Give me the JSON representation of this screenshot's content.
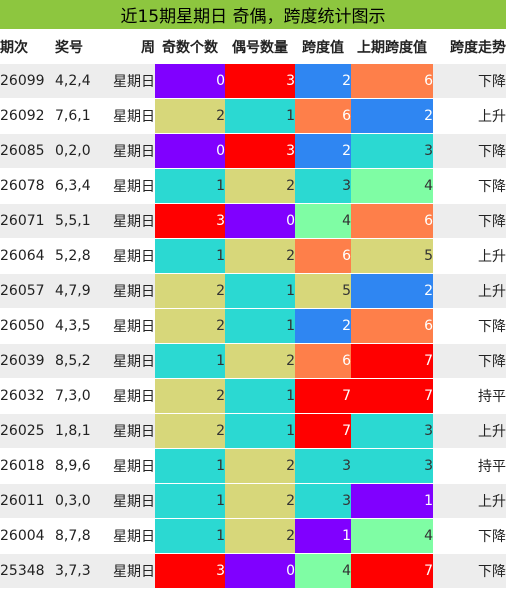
{
  "title": "近15期星期日 奇偶，跨度统计图示",
  "columns": [
    "期次",
    "奖号",
    "周",
    "奇数个数",
    "偶号数量",
    "跨度值",
    "上期跨度值",
    "跨度走势"
  ],
  "colors": {
    "0": "#8000ff",
    "1": "#2bd9d2",
    "2": "#d7d77a",
    "3": "#ff0000",
    "4": "#7ffda4",
    "5": "#d7d77a",
    "6": "#fe7f4a",
    "7": "#ff0000",
    "2_span": "#2f86f2",
    "1_span": "#8000ff",
    "3_span": "#2bd9d2"
  },
  "rows": [
    {
      "issue": "26099",
      "numbers": "4,2,4",
      "week": "星期日",
      "odd": "0",
      "even": "3",
      "span": "2",
      "prev_span": "6",
      "trend": "下降"
    },
    {
      "issue": "26092",
      "numbers": "7,6,1",
      "week": "星期日",
      "odd": "2",
      "even": "1",
      "span": "6",
      "prev_span": "2",
      "trend": "上升"
    },
    {
      "issue": "26085",
      "numbers": "0,2,0",
      "week": "星期日",
      "odd": "0",
      "even": "3",
      "span": "2",
      "prev_span": "3",
      "trend": "下降"
    },
    {
      "issue": "26078",
      "numbers": "6,3,4",
      "week": "星期日",
      "odd": "1",
      "even": "2",
      "span": "3",
      "prev_span": "4",
      "trend": "下降"
    },
    {
      "issue": "26071",
      "numbers": "5,5,1",
      "week": "星期日",
      "odd": "3",
      "even": "0",
      "span": "4",
      "prev_span": "6",
      "trend": "下降"
    },
    {
      "issue": "26064",
      "numbers": "5,2,8",
      "week": "星期日",
      "odd": "1",
      "even": "2",
      "span": "6",
      "prev_span": "5",
      "trend": "上升"
    },
    {
      "issue": "26057",
      "numbers": "4,7,9",
      "week": "星期日",
      "odd": "2",
      "even": "1",
      "span": "5",
      "prev_span": "2",
      "trend": "上升"
    },
    {
      "issue": "26050",
      "numbers": "4,3,5",
      "week": "星期日",
      "odd": "2",
      "even": "1",
      "span": "2",
      "prev_span": "6",
      "trend": "下降"
    },
    {
      "issue": "26039",
      "numbers": "8,5,2",
      "week": "星期日",
      "odd": "1",
      "even": "2",
      "span": "6",
      "prev_span": "7",
      "trend": "下降"
    },
    {
      "issue": "26032",
      "numbers": "7,3,0",
      "week": "星期日",
      "odd": "2",
      "even": "1",
      "span": "7",
      "prev_span": "7",
      "trend": "持平"
    },
    {
      "issue": "26025",
      "numbers": "1,8,1",
      "week": "星期日",
      "odd": "2",
      "even": "1",
      "span": "7",
      "prev_span": "3",
      "trend": "上升"
    },
    {
      "issue": "26018",
      "numbers": "8,9,6",
      "week": "星期日",
      "odd": "1",
      "even": "2",
      "span": "3",
      "prev_span": "3",
      "trend": "持平"
    },
    {
      "issue": "26011",
      "numbers": "0,3,0",
      "week": "星期日",
      "odd": "1",
      "even": "2",
      "span": "3",
      "prev_span": "1",
      "trend": "上升"
    },
    {
      "issue": "26004",
      "numbers": "8,7,8",
      "week": "星期日",
      "odd": "1",
      "even": "2",
      "span": "1",
      "prev_span": "4",
      "trend": "下降"
    },
    {
      "issue": "25348",
      "numbers": "3,7,3",
      "week": "星期日",
      "odd": "3",
      "even": "0",
      "span": "4",
      "prev_span": "7",
      "trend": "下降"
    }
  ]
}
